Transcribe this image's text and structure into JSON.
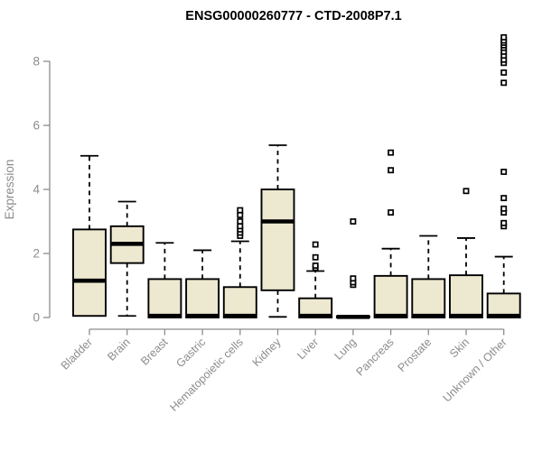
{
  "chart_data": {
    "type": "boxplot",
    "title": "ENSG00000260777 - CTD-2008P7.1",
    "ylabel": "Expression",
    "xlabel": "",
    "ylim": [
      0,
      8.8
    ],
    "yticks": [
      0,
      2,
      4,
      6,
      8
    ],
    "grid": false,
    "legend": false,
    "categories": [
      "Bladder",
      "Brain",
      "Breast",
      "Gastric",
      "Hematopoietic cells",
      "Kidney",
      "Liver",
      "Lung",
      "Pancreas",
      "Prostate",
      "Skin",
      "Unknown / Other"
    ],
    "series": [
      {
        "name": "Bladder",
        "low": 0.05,
        "q1": 0.05,
        "median": 1.15,
        "q3": 2.75,
        "high": 5.05,
        "outliers": []
      },
      {
        "name": "Brain",
        "low": 0.05,
        "q1": 1.7,
        "median": 2.3,
        "q3": 2.85,
        "high": 3.62,
        "outliers": []
      },
      {
        "name": "Breast",
        "low": 0.0,
        "q1": 0.0,
        "median": 0.05,
        "q3": 1.2,
        "high": 2.33,
        "outliers": []
      },
      {
        "name": "Gastric",
        "low": 0.0,
        "q1": 0.0,
        "median": 0.05,
        "q3": 1.2,
        "high": 2.1,
        "outliers": []
      },
      {
        "name": "Hematopoietic cells",
        "low": 0.0,
        "q1": 0.0,
        "median": 0.05,
        "q3": 0.95,
        "high": 2.38,
        "outliers": [
          2.55,
          2.65,
          2.75,
          2.85,
          3.0,
          3.2,
          3.35
        ]
      },
      {
        "name": "Kidney",
        "low": 0.02,
        "q1": 0.85,
        "median": 3.0,
        "q3": 4.0,
        "high": 5.38,
        "outliers": []
      },
      {
        "name": "Liver",
        "low": 0.0,
        "q1": 0.0,
        "median": 0.05,
        "q3": 0.6,
        "high": 1.45,
        "outliers": [
          1.55,
          1.62,
          1.88,
          2.28
        ]
      },
      {
        "name": "Lung",
        "low": 0.0,
        "q1": 0.0,
        "median": 0.02,
        "q3": 0.04,
        "high": 0.04,
        "outliers": [
          1.02,
          1.1,
          1.22,
          3.0
        ]
      },
      {
        "name": "Pancreas",
        "low": 0.0,
        "q1": 0.0,
        "median": 0.05,
        "q3": 1.3,
        "high": 2.15,
        "outliers": [
          3.28,
          4.6,
          5.15
        ]
      },
      {
        "name": "Prostate",
        "low": 0.0,
        "q1": 0.0,
        "median": 0.05,
        "q3": 1.2,
        "high": 2.55,
        "outliers": []
      },
      {
        "name": "Skin",
        "low": 0.0,
        "q1": 0.0,
        "median": 0.05,
        "q3": 1.32,
        "high": 2.48,
        "outliers": [
          3.95
        ]
      },
      {
        "name": "Unknown / Other",
        "low": 0.0,
        "q1": 0.0,
        "median": 0.05,
        "q3": 0.75,
        "high": 1.9,
        "outliers": [
          2.85,
          2.95,
          3.28,
          3.4,
          3.73,
          4.55,
          7.33,
          7.65,
          7.95,
          8.05,
          8.18,
          8.3,
          8.42,
          8.5,
          8.58,
          8.65,
          8.75
        ]
      }
    ],
    "colors": {
      "box_fill": "#EDE8D0",
      "box_border": "#000000",
      "median": "#000000",
      "whisker": "#000000",
      "outlier_stroke": "#000000",
      "outlier_fill": "#FFFFFF",
      "axis": "#8C8C8C",
      "tick_label": "#8C8C8C",
      "title": "#000000",
      "background": "#FFFFFF"
    }
  }
}
